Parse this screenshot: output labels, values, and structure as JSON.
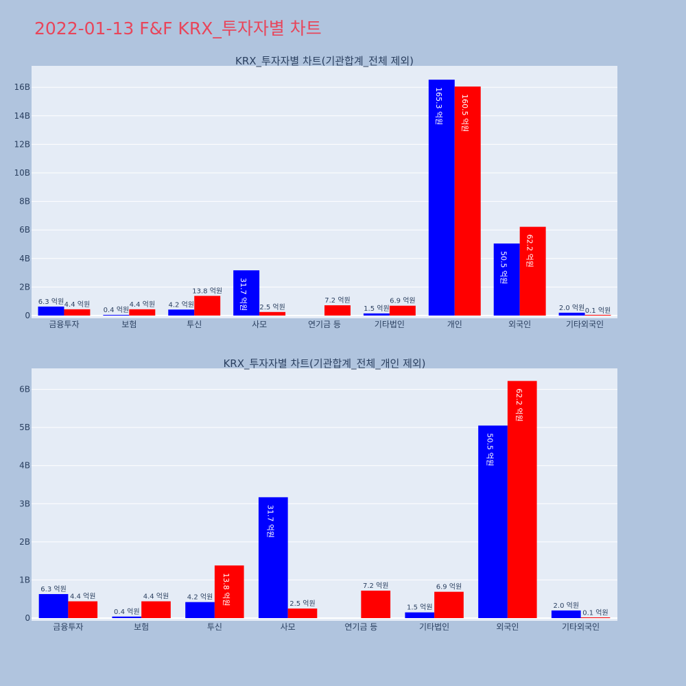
{
  "page_title": "2022-01-13 F&F KRX_투자자별 차트",
  "colors": {
    "buy": "#0000ff",
    "sell": "#ff0000",
    "plot_bg": "#e5ecf6",
    "paper_bg": "#b0c4de",
    "title": "#e8455a"
  },
  "chart_data": [
    {
      "type": "bar",
      "title": "KRX_투자자별 차트(기관합계_전체 제외)",
      "categories": [
        "금융투자",
        "보험",
        "투신",
        "사모",
        "연기금 등",
        "기타법인",
        "개인",
        "외국인",
        "기타외국인"
      ],
      "series": [
        {
          "values": [
            0.63,
            0.04,
            0.42,
            3.17,
            0,
            0.15,
            16.53,
            5.05,
            0.2
          ],
          "labels": [
            "6.3 억원",
            "0.4 억원",
            "4.2 억원",
            "31.7 억원",
            "",
            "1.5 억원",
            "165.3 억원",
            "50.5 억원",
            "2.0 억원"
          ]
        },
        {
          "values": [
            0.44,
            0.44,
            1.38,
            0.25,
            0.72,
            0.69,
            16.05,
            6.22,
            0.01
          ],
          "labels": [
            "4.4 억원",
            "4.4 억원",
            "13.8 억원",
            "2.5 억원",
            "7.2 억원",
            "6.9 억원",
            "160.5 억원",
            "62.2 억원",
            "0.1 억원"
          ]
        }
      ],
      "yticks": [
        "0",
        "2B",
        "4B",
        "6B",
        "8B",
        "10B",
        "12B",
        "14B",
        "16B"
      ],
      "ylim": [
        0,
        17.5
      ],
      "unit": "B",
      "grid": true
    },
    {
      "type": "bar",
      "title": "KRX_투자자별 차트(기관합계_전체_개인 제외)",
      "categories": [
        "금융투자",
        "보험",
        "투신",
        "사모",
        "연기금 등",
        "기타법인",
        "외국인",
        "기타외국인"
      ],
      "series": [
        {
          "values": [
            0.63,
            0.04,
            0.42,
            3.17,
            0,
            0.15,
            5.05,
            0.2
          ],
          "labels": [
            "6.3 억원",
            "0.4 억원",
            "4.2 억원",
            "31.7 억원",
            "",
            "1.5 억원",
            "50.5 억원",
            "2.0 억원"
          ]
        },
        {
          "values": [
            0.44,
            0.44,
            1.38,
            0.25,
            0.72,
            0.69,
            6.22,
            0.01
          ],
          "labels": [
            "4.4 억원",
            "4.4 억원",
            "13.8 억원",
            "2.5 억원",
            "7.2 억원",
            "6.9 억원",
            "62.2 억원",
            "0.1 억원"
          ]
        }
      ],
      "yticks": [
        "0",
        "1B",
        "2B",
        "3B",
        "4B",
        "5B",
        "6B"
      ],
      "ylim": [
        0,
        6.55
      ],
      "unit": "B",
      "grid": true
    }
  ]
}
